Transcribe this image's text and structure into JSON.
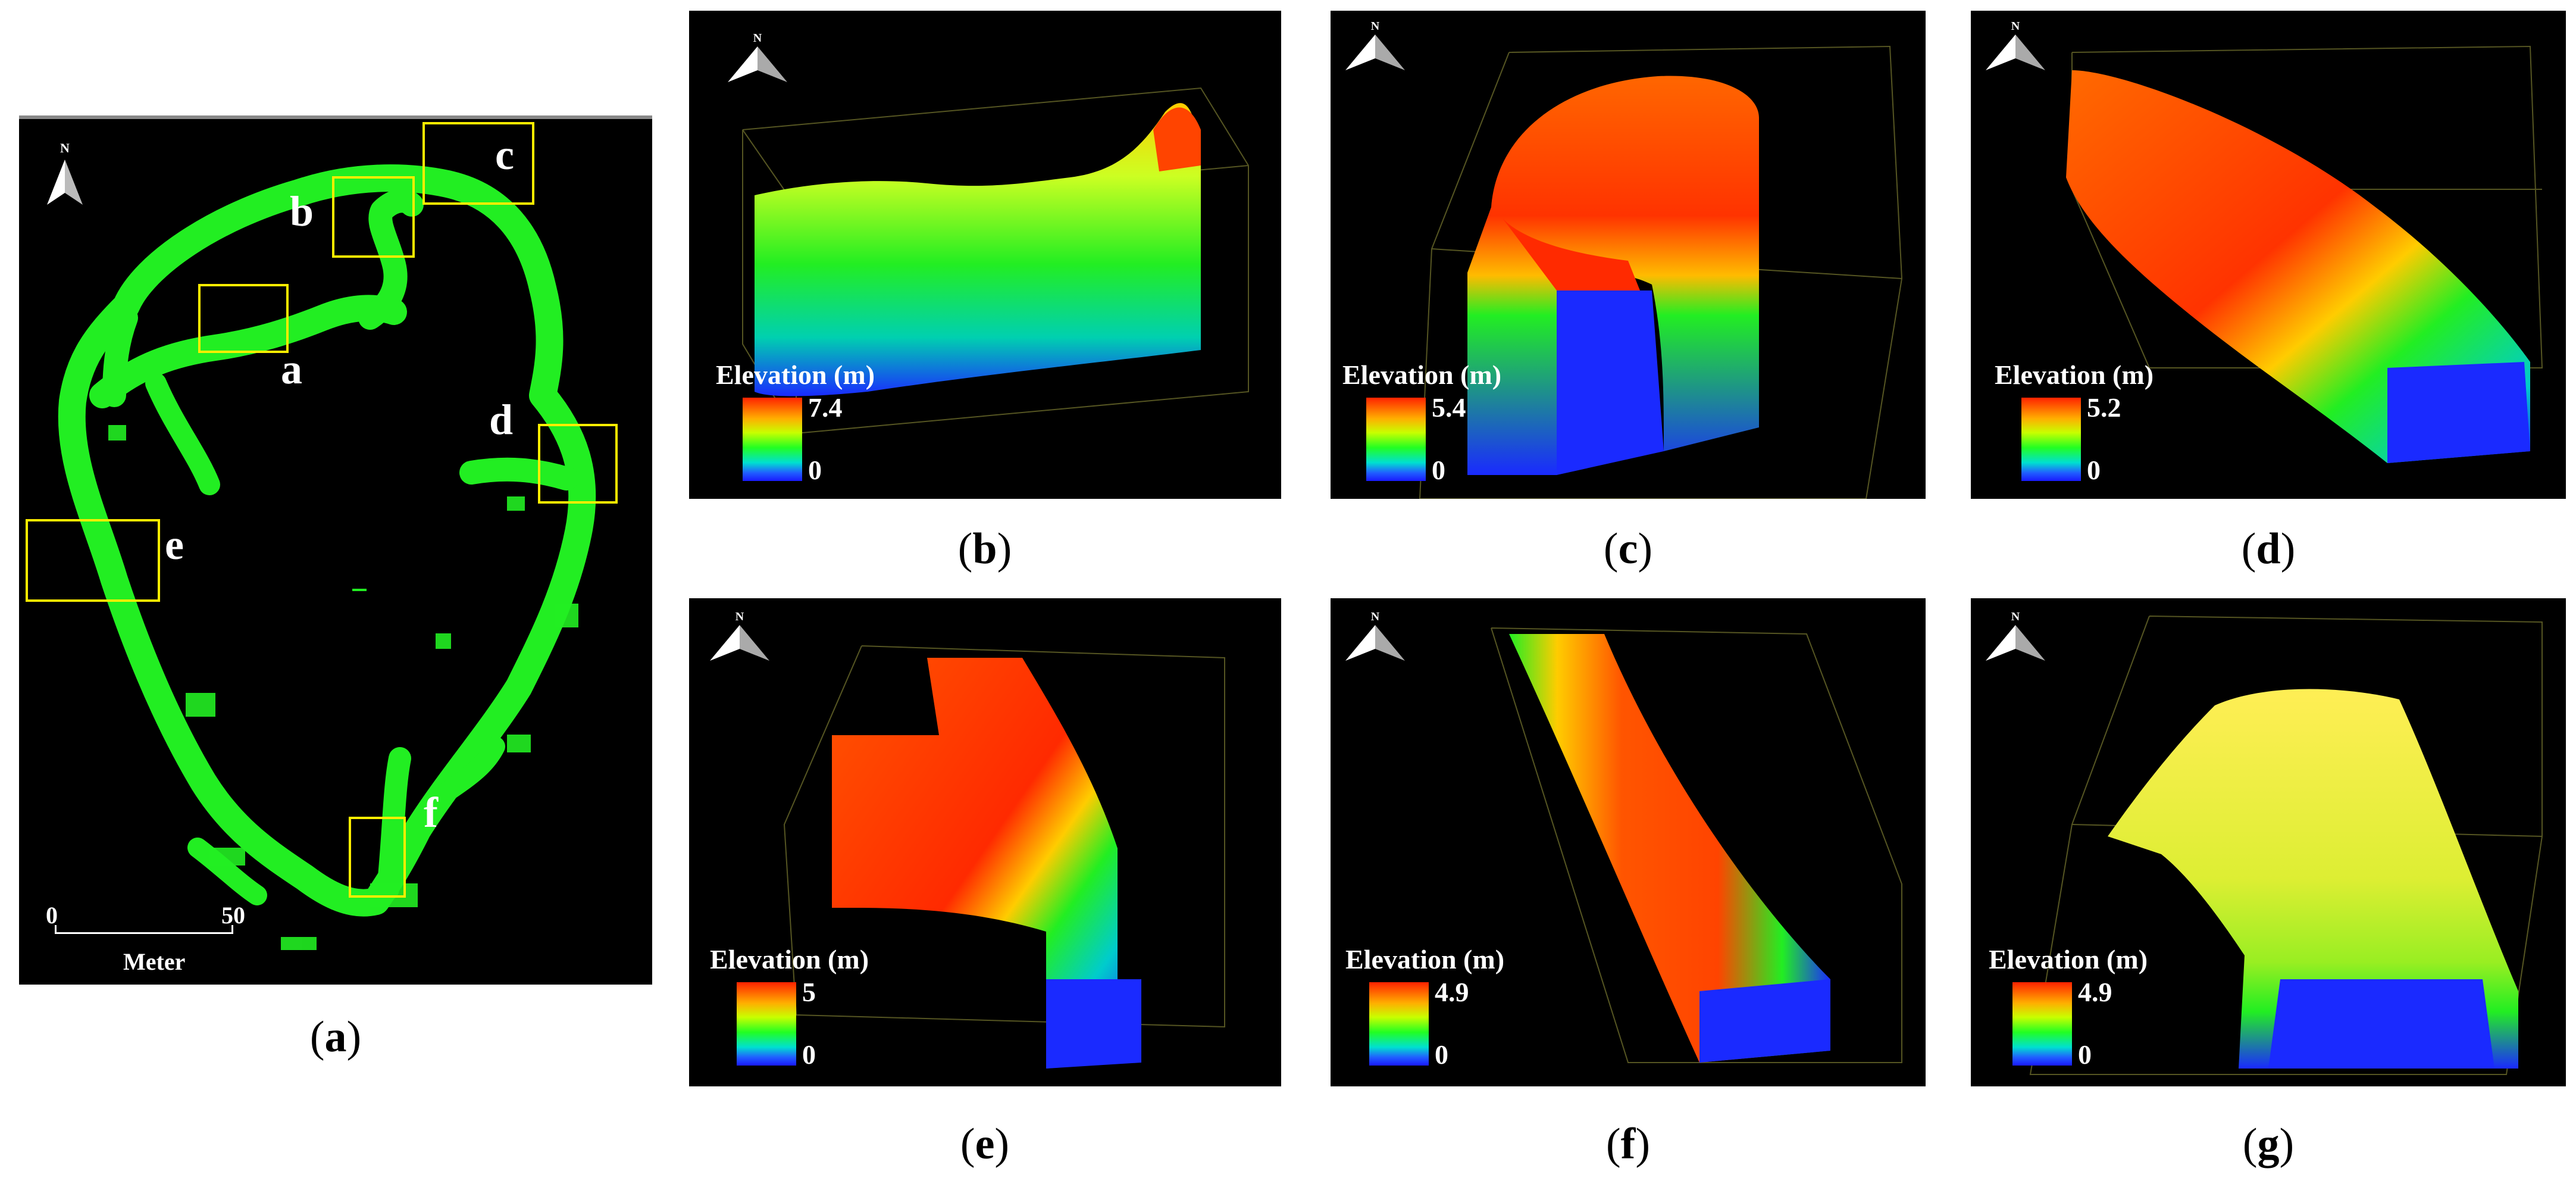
{
  "map_panel": {
    "caption": "a",
    "north_symbol": "N",
    "boxes": [
      {
        "label": "a"
      },
      {
        "label": "b"
      },
      {
        "label": "c"
      },
      {
        "label": "d"
      },
      {
        "label": "e"
      },
      {
        "label": "f"
      }
    ],
    "scale_bar": {
      "start": "0",
      "end": "50",
      "unit": "Meter"
    },
    "colors": {
      "trail": "#22ee22",
      "box": "#ffee00",
      "background": "#000000"
    }
  },
  "views": [
    {
      "caption": "b",
      "legend_title": "Elevation (m)",
      "max": "7.4",
      "min": "0",
      "north_symbol": "N"
    },
    {
      "caption": "c",
      "legend_title": "Elevation (m)",
      "max": "5.4",
      "min": "0",
      "north_symbol": "N"
    },
    {
      "caption": "d",
      "legend_title": "Elevation (m)",
      "max": "5.2",
      "min": "0",
      "north_symbol": "N"
    },
    {
      "caption": "e",
      "legend_title": "Elevation (m)",
      "max": "5",
      "min": "0",
      "north_symbol": "N"
    },
    {
      "caption": "f",
      "legend_title": "Elevation (m)",
      "max": "4.9",
      "min": "0",
      "north_symbol": "N"
    },
    {
      "caption": "g",
      "legend_title": "Elevation (m)",
      "max": "4.9",
      "min": "0",
      "north_symbol": "N"
    }
  ]
}
